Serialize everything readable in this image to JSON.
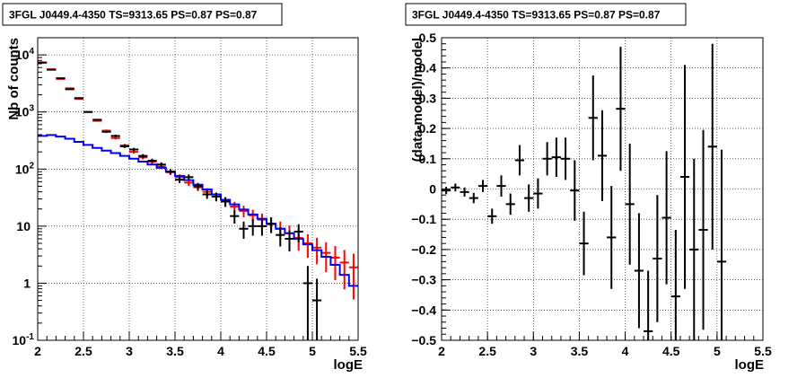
{
  "chart_data": [
    {
      "type": "line",
      "title": "3FGL J0449.4-4350 TS=9313.65 PS=0.87 PS=0.87",
      "xlabel": "logE",
      "ylabel": "Nb of counts",
      "xlim": [
        2,
        5.5
      ],
      "ylim": [
        0.1,
        20000
      ],
      "yscale": "log",
      "grid": true,
      "x_ticks": [
        "2",
        "2.5",
        "3",
        "3.5",
        "4",
        "4.5",
        "5",
        "5.5"
      ],
      "y_ticks": [
        {
          "base": "10",
          "exp": "-1"
        },
        {
          "base": "1",
          "exp": ""
        },
        {
          "base": "10",
          "exp": ""
        },
        {
          "base": "10",
          "exp": "2"
        },
        {
          "base": "10",
          "exp": "3"
        },
        {
          "base": "10",
          "exp": "4"
        }
      ],
      "series": [
        {
          "color": "#ff0000",
          "style": "errorbar",
          "x": [
            2.05,
            2.15,
            2.25,
            2.35,
            2.45,
            2.55,
            2.65,
            2.75,
            2.85,
            2.95,
            3.05,
            3.15,
            3.25,
            3.35,
            3.45,
            3.55,
            3.65,
            3.75,
            3.85,
            3.95,
            4.05,
            4.15,
            4.25,
            4.35,
            4.45,
            4.55,
            4.65,
            4.75,
            4.85,
            4.95,
            5.05,
            5.15,
            5.25,
            5.35,
            5.45
          ],
          "y": [
            7400,
            5600,
            3800,
            2600,
            1700,
            1000,
            700,
            470,
            350,
            260,
            200,
            160,
            135,
            110,
            88,
            72,
            58,
            48,
            40,
            33,
            27,
            22,
            18.5,
            15.5,
            13,
            10.8,
            9.0,
            7.5,
            6.2,
            5.0,
            4.2,
            3.4,
            2.8,
            2.3,
            1.9
          ],
          "yerr": [
            86,
            75,
            62,
            51,
            41,
            32,
            26,
            22,
            19,
            16,
            14,
            13,
            12,
            10.5,
            9.4,
            8.5,
            7.6,
            6.9,
            6.3,
            5.7,
            5.2,
            4.7,
            4.3,
            3.9,
            3.6,
            3.3,
            3.0,
            2.7,
            2.5,
            2.2,
            2.05,
            1.84,
            1.67,
            1.52,
            1.38
          ]
        },
        {
          "color": "#0000ff",
          "style": "step",
          "x": [
            2.05,
            2.15,
            2.25,
            2.35,
            2.45,
            2.55,
            2.65,
            2.75,
            2.85,
            2.95,
            3.05,
            3.15,
            3.25,
            3.35,
            3.45,
            3.55,
            3.65,
            3.75,
            3.85,
            3.95,
            4.05,
            4.15,
            4.25,
            4.35,
            4.45,
            4.55,
            4.65,
            4.75,
            4.85,
            4.95,
            5.05,
            5.15,
            5.25,
            5.35,
            5.45
          ],
          "y": [
            380,
            395,
            370,
            340,
            300,
            265,
            235,
            210,
            190,
            170,
            152,
            135,
            120,
            105,
            90,
            76,
            64,
            53,
            44,
            36,
            29,
            24,
            19.5,
            16,
            13.5,
            11,
            9,
            7.5,
            6,
            4.8,
            3.8,
            2.9,
            2.1,
            1.4,
            0.9
          ]
        },
        {
          "color": "#000000",
          "style": "errorbar",
          "x": [
            2.05,
            2.15,
            2.25,
            2.35,
            2.45,
            2.55,
            2.65,
            2.75,
            2.85,
            2.95,
            3.05,
            3.15,
            3.25,
            3.35,
            3.45,
            3.55,
            3.65,
            3.75,
            3.85,
            3.95,
            4.05,
            4.15,
            4.25,
            4.35,
            4.45,
            4.55,
            4.65,
            4.75,
            4.85,
            4.95,
            5.05
          ],
          "y": [
            7300,
            5500,
            3900,
            2500,
            1750,
            1000,
            730,
            450,
            380,
            250,
            220,
            170,
            140,
            120,
            90,
            65,
            72,
            50,
            36,
            33,
            27,
            15,
            9,
            10,
            10,
            11,
            7,
            6,
            8,
            1,
            0.5
          ],
          "yerr": [
            86,
            74,
            62,
            50,
            42,
            32,
            27,
            21,
            19.5,
            16,
            15,
            13,
            12,
            11,
            9.5,
            8.1,
            8.5,
            7.1,
            6,
            5.7,
            5.2,
            3.9,
            3,
            3.2,
            3.2,
            3.3,
            2.6,
            2.4,
            2.8,
            1,
            0.7
          ]
        }
      ]
    },
    {
      "type": "scatter",
      "title": "3FGL J0449.4-4350 TS=9313.65 PS=0.87 PS=0.87",
      "xlabel": "logE",
      "ylabel": "(data-model)/model",
      "xlim": [
        2,
        5.5
      ],
      "ylim": [
        -0.5,
        0.5
      ],
      "grid": true,
      "x_ticks": [
        "2",
        "2.5",
        "3",
        "3.5",
        "4",
        "4.5",
        "5",
        "5.5"
      ],
      "y_ticks": [
        "−0.5",
        "−0.4",
        "−0.3",
        "−0.2",
        "−0.1",
        "0",
        "0.1",
        "0.2",
        "0.3",
        "0.4",
        "0.5"
      ],
      "series": [
        {
          "color": "#000000",
          "style": "errorbar",
          "x": [
            2.05,
            2.15,
            2.25,
            2.35,
            2.45,
            2.55,
            2.65,
            2.75,
            2.85,
            2.95,
            3.05,
            3.15,
            3.25,
            3.35,
            3.45,
            3.55,
            3.65,
            3.75,
            3.85,
            3.95,
            4.05,
            4.15,
            4.25,
            4.35,
            4.45,
            4.55,
            4.65,
            4.75,
            4.85,
            4.95,
            5.05
          ],
          "y": [
            -0.005,
            0.005,
            -0.01,
            -0.03,
            0.01,
            -0.09,
            0.01,
            -0.05,
            0.095,
            -0.03,
            -0.015,
            0.1,
            0.105,
            0.1,
            -0.005,
            -0.18,
            0.235,
            0.11,
            -0.16,
            0.265,
            -0.05,
            -0.27,
            -0.47,
            -0.23,
            -0.095,
            -0.355,
            0.04,
            -0.2,
            -0.135,
            0.14,
            -0.24
          ],
          "yerr": [
            0.012,
            0.013,
            0.015,
            0.017,
            0.02,
            0.025,
            0.035,
            0.035,
            0.05,
            0.045,
            0.05,
            0.055,
            0.065,
            0.07,
            0.1,
            0.105,
            0.14,
            0.15,
            0.17,
            0.205,
            0.2,
            0.19,
            0.2,
            0.21,
            0.22,
            0.22,
            0.37,
            0.3,
            0.33,
            0.34,
            0.37
          ]
        }
      ]
    }
  ]
}
